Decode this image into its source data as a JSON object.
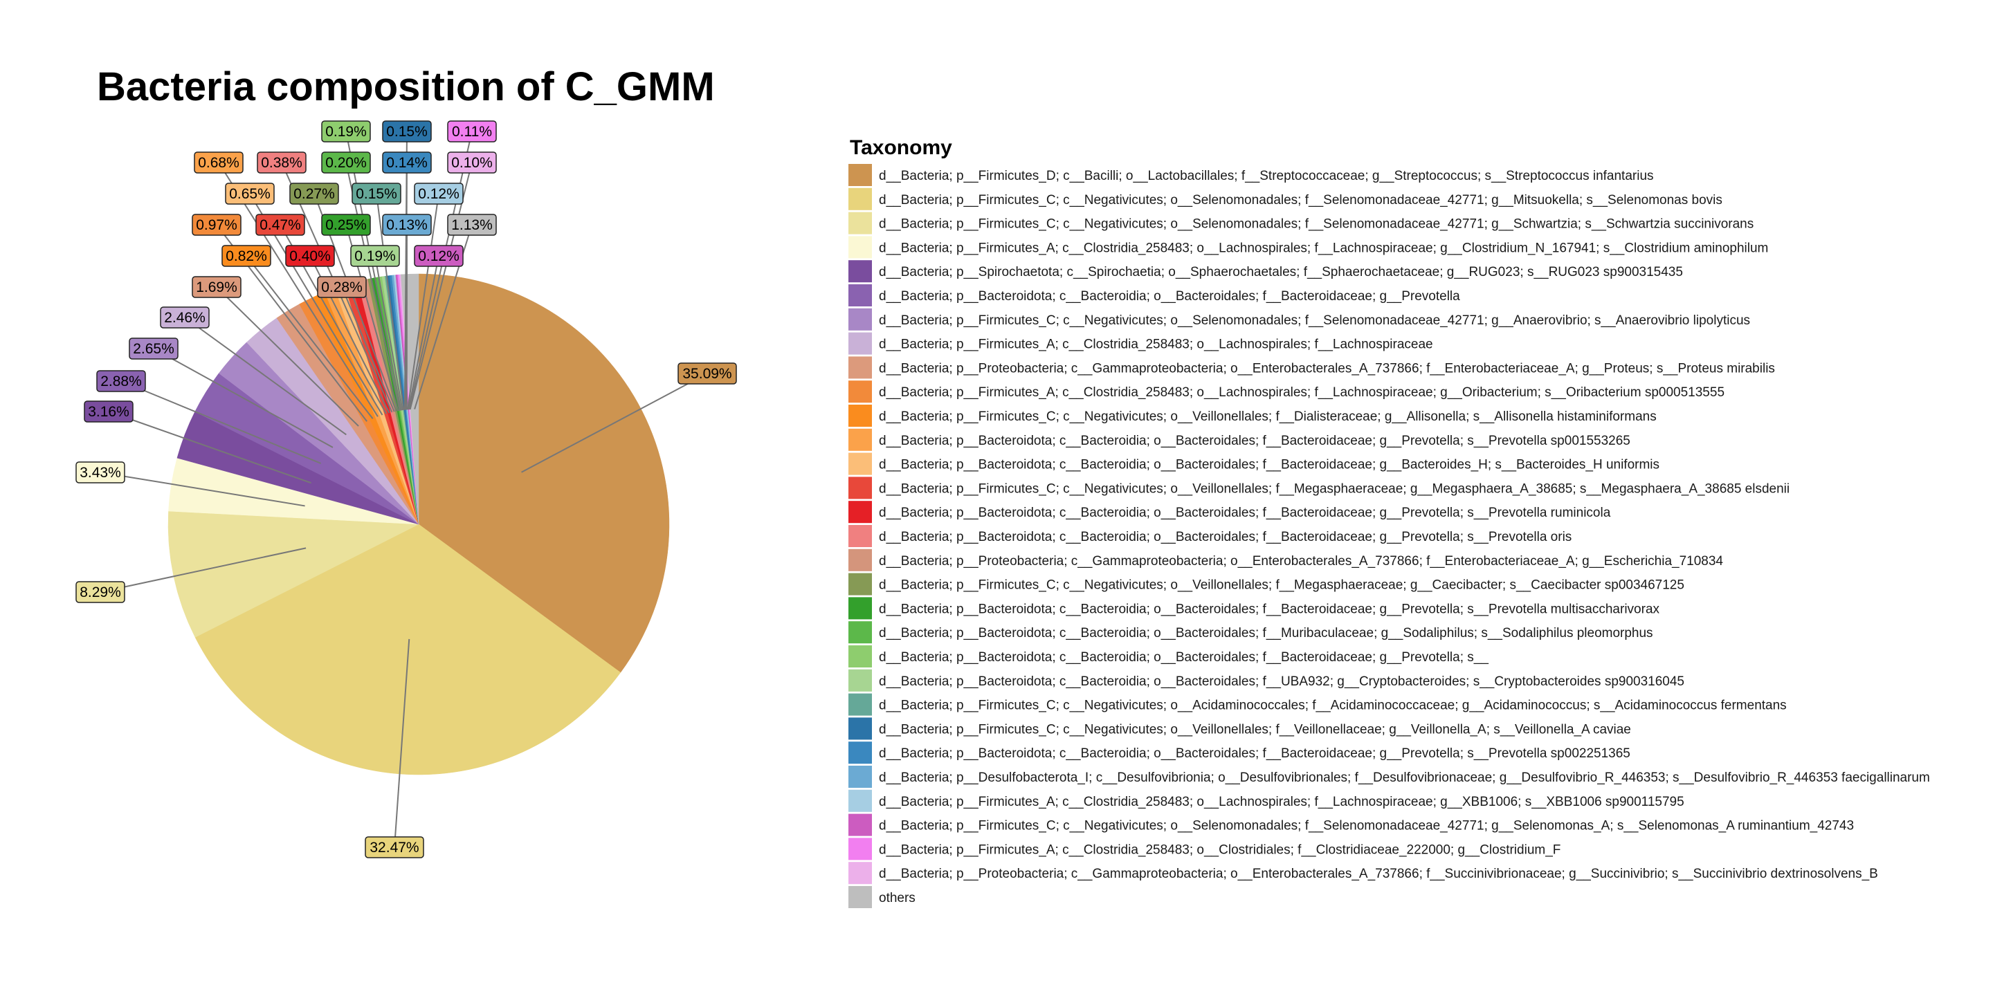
{
  "chart_data": {
    "type": "pie",
    "title": "Bacteria composition of C_GMM",
    "legend_title": "Taxonomy",
    "legend_position": "right",
    "slices": [
      {
        "label": "d__Bacteria; p__Firmicutes_D; c__Bacilli; o__Lactobacillales; f__Streptococcaceae; g__Streptococcus; s__Streptococcus infantarius",
        "value": 35.09,
        "value_label": "35.09%",
        "color": "#CD9450"
      },
      {
        "label": "d__Bacteria; p__Firmicutes_C; c__Negativicutes; o__Selenomonadales; f__Selenomonadaceae_42771; g__Mitsuokella; s__Selenomonas bovis",
        "value": 32.47,
        "value_label": "32.47%",
        "color": "#E8D47C"
      },
      {
        "label": "d__Bacteria; p__Firmicutes_C; c__Negativicutes; o__Selenomonadales; f__Selenomonadaceae_42771; g__Schwartzia; s__Schwartzia succinivorans",
        "value": 8.29,
        "value_label": "8.29%",
        "color": "#EBE29C"
      },
      {
        "label": "d__Bacteria; p__Firmicutes_A; c__Clostridia_258483; o__Lachnospirales; f__Lachnospiraceae; g__Clostridium_N_167941; s__Clostridium aminophilum",
        "value": 3.43,
        "value_label": "3.43%",
        "color": "#FBF8D4"
      },
      {
        "label": "d__Bacteria; p__Spirochaetota; c__Spirochaetia; o__Sphaerochaetales; f__Sphaerochaetaceae; g__RUG023; s__RUG023 sp900315435",
        "value": 3.16,
        "value_label": "3.16%",
        "color": "#7A4D9E"
      },
      {
        "label": "d__Bacteria; p__Bacteroidota; c__Bacteroidia; o__Bacteroidales; f__Bacteroidaceae; g__Prevotella",
        "value": 2.88,
        "value_label": "2.88%",
        "color": "#8A62B0"
      },
      {
        "label": "d__Bacteria; p__Firmicutes_C; c__Negativicutes; o__Selenomonadales; f__Selenomonadaceae_42771; g__Anaerovibrio; s__Anaerovibrio lipolyticus",
        "value": 2.65,
        "value_label": "2.65%",
        "color": "#A887C6"
      },
      {
        "label": "d__Bacteria; p__Firmicutes_A; c__Clostridia_258483; o__Lachnospirales; f__Lachnospiraceae",
        "value": 2.46,
        "value_label": "2.46%",
        "color": "#C9B1D7"
      },
      {
        "label": "d__Bacteria; p__Proteobacteria; c__Gammaproteobacteria; o__Enterobacterales_A_737866; f__Enterobacteriaceae_A; g__Proteus; s__Proteus mirabilis",
        "value": 1.69,
        "value_label": "1.69%",
        "color": "#DC9A7C"
      },
      {
        "label": "d__Bacteria; p__Firmicutes_A; c__Clostridia_258483; o__Lachnospirales; f__Lachnospiraceae; g__Oribacterium; s__Oribacterium sp000513555",
        "value": 0.97,
        "value_label": "0.97%",
        "color": "#F28A3A"
      },
      {
        "label": "d__Bacteria; p__Firmicutes_C; c__Negativicutes; o__Veillonellales; f__Dialisteraceae; g__Allisonella; s__Allisonella histaminiformans",
        "value": 0.82,
        "value_label": "0.82%",
        "color": "#FA8C1E"
      },
      {
        "label": "d__Bacteria; p__Bacteroidota; c__Bacteroidia; o__Bacteroidales; f__Bacteroidaceae; g__Prevotella; s__Prevotella sp001553265",
        "value": 0.68,
        "value_label": "0.68%",
        "color": "#FBA24A"
      },
      {
        "label": "d__Bacteria; p__Bacteroidota; c__Bacteroidia; o__Bacteroidales; f__Bacteroidaceae; g__Bacteroides_H; s__Bacteroides_H uniformis",
        "value": 0.65,
        "value_label": "0.65%",
        "color": "#FBBE78"
      },
      {
        "label": "d__Bacteria; p__Firmicutes_C; c__Negativicutes; o__Veillonellales; f__Megasphaeraceae; g__Megasphaera_A_38685; s__Megasphaera_A_38685 elsdenii",
        "value": 0.47,
        "value_label": "0.47%",
        "color": "#E8483A"
      },
      {
        "label": "d__Bacteria; p__Bacteroidota; c__Bacteroidia; o__Bacteroidales; f__Bacteroidaceae; g__Prevotella; s__Prevotella ruminicola",
        "value": 0.4,
        "value_label": "0.40%",
        "color": "#E52026"
      },
      {
        "label": "d__Bacteria; p__Bacteroidota; c__Bacteroidia; o__Bacteroidales; f__Bacteroidaceae; g__Prevotella; s__Prevotella oris",
        "value": 0.38,
        "value_label": "0.38%",
        "color": "#F08080"
      },
      {
        "label": "d__Bacteria; p__Proteobacteria; c__Gammaproteobacteria; o__Enterobacterales_A_737866; f__Enterobacteriaceae_A; g__Escherichia_710834",
        "value": 0.28,
        "value_label": "0.28%",
        "color": "#D4957C"
      },
      {
        "label": "d__Bacteria; p__Firmicutes_C; c__Negativicutes; o__Veillonellales; f__Megasphaeraceae; g__Caecibacter; s__Caecibacter sp003467125",
        "value": 0.27,
        "value_label": "0.27%",
        "color": "#869A55"
      },
      {
        "label": "d__Bacteria; p__Bacteroidota; c__Bacteroidia; o__Bacteroidales; f__Bacteroidaceae; g__Prevotella; s__Prevotella multisaccharivorax",
        "value": 0.25,
        "value_label": "0.25%",
        "color": "#33A02C"
      },
      {
        "label": "d__Bacteria; p__Bacteroidota; c__Bacteroidia; o__Bacteroidales; f__Muribaculaceae; g__Sodaliphilus; s__Sodaliphilus pleomorphus",
        "value": 0.2,
        "value_label": "0.20%",
        "color": "#5CB84A"
      },
      {
        "label": "d__Bacteria; p__Bacteroidota; c__Bacteroidia; o__Bacteroidales; f__Bacteroidaceae; g__Prevotella; s__",
        "value": 0.19,
        "value_label": "0.19%",
        "color": "#8ECD6E"
      },
      {
        "label": "d__Bacteria; p__Bacteroidota; c__Bacteroidia; o__Bacteroidales; f__UBA932; g__Cryptobacteroides; s__Cryptobacteroides sp900316045",
        "value": 0.19,
        "value_label": "0.19%",
        "color": "#A7D592"
      },
      {
        "label": "d__Bacteria; p__Firmicutes_C; c__Negativicutes; o__Acidaminococcales; f__Acidaminococcaceae; g__Acidaminococcus; s__Acidaminococcus fermentans",
        "value": 0.15,
        "value_label": "0.15%",
        "color": "#65A898"
      },
      {
        "label": "d__Bacteria; p__Firmicutes_C; c__Negativicutes; o__Veillonellales; f__Veillonellaceae; g__Veillonella_A; s__Veillonella_A caviae",
        "value": 0.15,
        "value_label": "0.15%",
        "color": "#2B74A8"
      },
      {
        "label": "d__Bacteria; p__Bacteroidota; c__Bacteroidia; o__Bacteroidales; f__Bacteroidaceae; g__Prevotella; s__Prevotella sp002251365",
        "value": 0.14,
        "value_label": "0.14%",
        "color": "#3A88BF"
      },
      {
        "label": "d__Bacteria; p__Desulfobacterota_I; c__Desulfovibrionia; o__Desulfovibrionales; f__Desulfovibrionaceae; g__Desulfovibrio_R_446353; s__Desulfovibrio_R_446353 faecigallinarum",
        "value": 0.13,
        "value_label": "0.13%",
        "color": "#6BAAD3"
      },
      {
        "label": "d__Bacteria; p__Firmicutes_A; c__Clostridia_258483; o__Lachnospirales; f__Lachnospiraceae; g__XBB1006; s__XBB1006 sp900115795",
        "value": 0.12,
        "value_label": "0.12%",
        "color": "#A6CEE3"
      },
      {
        "label": "d__Bacteria; p__Firmicutes_C; c__Negativicutes; o__Selenomonadales; f__Selenomonadaceae_42771; g__Selenomonas_A; s__Selenomonas_A ruminantium_42743",
        "value": 0.12,
        "value_label": "0.12%",
        "color": "#CC5CC0"
      },
      {
        "label": "d__Bacteria; p__Firmicutes_A; c__Clostridia_258483; o__Clostridiales; f__Clostridiaceae_222000; g__Clostridium_F",
        "value": 0.11,
        "value_label": "0.11%",
        "color": "#F27FF0"
      },
      {
        "label": "d__Bacteria; p__Proteobacteria; c__Gammaproteobacteria; o__Enterobacterales_A_737866; f__Succinivibrionaceae; g__Succinivibrio; s__Succinivibrio dextrinosolvens_B",
        "value": 0.1,
        "value_label": "0.10%",
        "color": "#ECB0EA"
      },
      {
        "label": "others",
        "value": 1.13,
        "value_label": "1.13%",
        "color": "#BEBEBE"
      }
    ]
  }
}
